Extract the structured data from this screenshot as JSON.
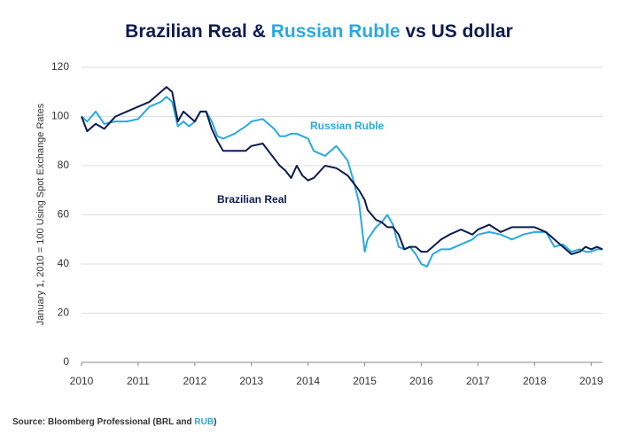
{
  "chart_data": {
    "type": "line",
    "title": [
      "Brazilian Real & ",
      "Russian Ruble",
      " vs US dollar"
    ],
    "title_colors": [
      "#0d1b4f",
      "#29a9e0",
      "#0d1b4f"
    ],
    "y_label": "January 1, 2010 = 100 Using Spot Exchange Rates",
    "source": [
      "Source: Bloomberg Professional (BRL and ",
      "RUB",
      ")"
    ],
    "source_colors": [
      "#333333",
      "#29a9e0",
      "#333333"
    ],
    "x": [
      2010,
      2010.1,
      2010.25,
      2010.4,
      2010.6,
      2010.8,
      2011.0,
      2011.2,
      2011.4,
      2011.5,
      2011.6,
      2011.7,
      2011.8,
      2011.9,
      2012.0,
      2012.1,
      2012.2,
      2012.3,
      2012.4,
      2012.5,
      2012.7,
      2012.9,
      2013.0,
      2013.2,
      2013.4,
      2013.5,
      2013.6,
      2013.7,
      2013.8,
      2013.9,
      2014.0,
      2014.1,
      2014.3,
      2014.5,
      2014.7,
      2014.8,
      2014.9,
      2015.0,
      2015.05,
      2015.2,
      2015.3,
      2015.4,
      2015.5,
      2015.6,
      2015.7,
      2015.8,
      2015.9,
      2016.0,
      2016.1,
      2016.2,
      2016.35,
      2016.5,
      2016.7,
      2016.9,
      2017.0,
      2017.2,
      2017.4,
      2017.6,
      2017.8,
      2018.0,
      2018.2,
      2018.35,
      2018.5,
      2018.65,
      2018.8,
      2018.9,
      2019.0,
      2019.1,
      2019.2
    ],
    "series": [
      {
        "name": "Russian Ruble",
        "color": "#29a9e0",
        "values": [
          100,
          98,
          102,
          97,
          98,
          98,
          99,
          104,
          106,
          108,
          106,
          96,
          98,
          96,
          98,
          102,
          102,
          98,
          92,
          91,
          93,
          96,
          98,
          99,
          95,
          92,
          92,
          93,
          93,
          92,
          91,
          86,
          84,
          88,
          82,
          74,
          65,
          45,
          50,
          55,
          57,
          60,
          56,
          47,
          46,
          47,
          44,
          40,
          39,
          44,
          46,
          46,
          48,
          50,
          52,
          53,
          52,
          50,
          52,
          53,
          53,
          47,
          48,
          45,
          46,
          45,
          45,
          46,
          46
        ]
      },
      {
        "name": "Brazilian Real",
        "color": "#0d1b4f",
        "values": [
          100,
          94,
          97,
          95,
          100,
          102,
          104,
          106,
          110,
          112,
          110,
          98,
          102,
          100,
          98,
          102,
          102,
          95,
          90,
          86,
          86,
          86,
          88,
          89,
          83,
          80,
          78,
          75,
          80,
          76,
          74,
          75,
          80,
          79,
          76,
          73,
          70,
          66,
          62,
          58,
          57,
          55,
          55,
          52,
          46,
          47,
          47,
          45,
          45,
          47,
          50,
          52,
          54,
          52,
          54,
          56,
          53,
          55,
          55,
          55,
          53,
          50,
          47,
          44,
          45,
          47,
          46,
          47,
          46
        ]
      }
    ],
    "xlim": [
      2010,
      2019.2
    ],
    "xticks": [
      2010,
      2011,
      2012,
      2013,
      2014,
      2015,
      2016,
      2017,
      2018,
      2019
    ],
    "ylim": [
      0,
      120
    ],
    "yticks": [
      0,
      20,
      40,
      60,
      80,
      100,
      120
    ],
    "grid": true
  }
}
